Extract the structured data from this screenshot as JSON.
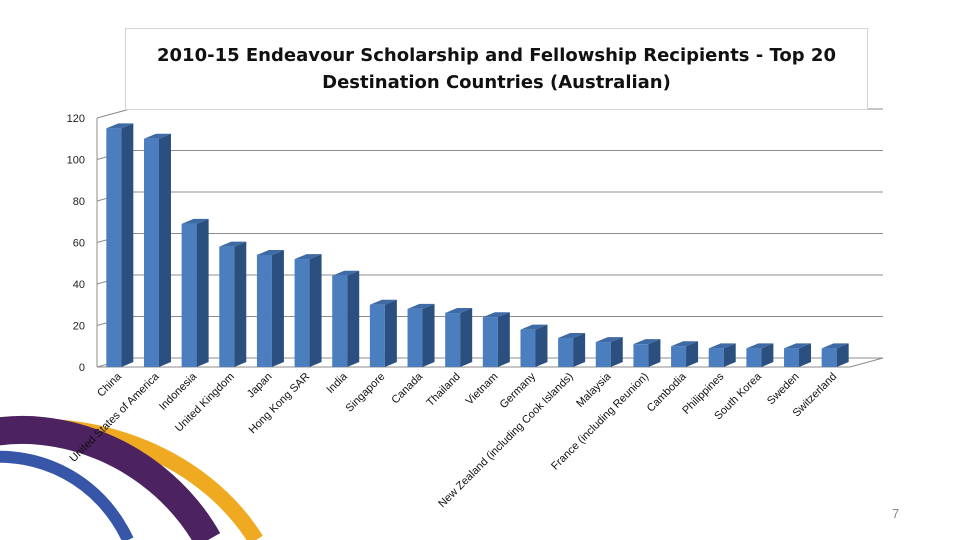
{
  "slide": {
    "page_number": "7"
  },
  "colors": {
    "bar_front": "#4a7ebf",
    "bar_side": "#2b4f7f",
    "bar_top": "#3e6aa6",
    "gridline": "#8c8c8c",
    "arc_purple": "#4d2260",
    "arc_yellow": "#f0aa22",
    "arc_blue": "#3856a8"
  },
  "chart_data": {
    "type": "bar",
    "title": [
      "2010-15  Endeavour Scholarship and Fellowship Recipients - Top 20",
      "Destination Countries (Australian)"
    ],
    "xlabel": "",
    "ylabel": "",
    "ylim": [
      0,
      120
    ],
    "yticks": [
      0,
      20,
      40,
      60,
      80,
      100,
      120
    ],
    "grid": true,
    "legend": "none",
    "categories": [
      "China",
      "United States of America",
      "Indonesia",
      "United Kingdom",
      "Japan",
      "Hong Kong SAR",
      "India",
      "Singapore",
      "Canada",
      "Thailand",
      "Vietnam",
      "Germany",
      "New Zealand (including Cook Islands)",
      "Malaysia",
      "France (including Reunion)",
      "Cambodia",
      "Philippines",
      "South Korea",
      "Sweden",
      "Switzerland"
    ],
    "values": [
      115,
      110,
      69,
      58,
      54,
      52,
      44,
      30,
      28,
      26,
      24,
      18,
      14,
      12,
      11,
      10,
      9,
      9,
      9,
      9
    ]
  }
}
